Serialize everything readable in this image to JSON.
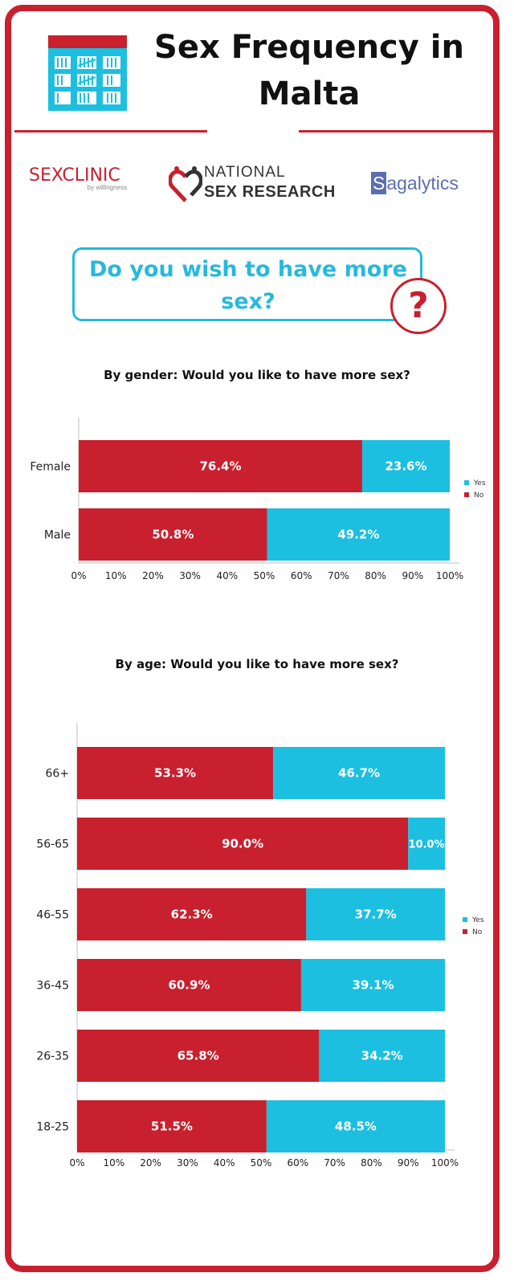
{
  "header": {
    "title": "Sex Frequency in Malta",
    "icon": "calendar-tally-icon"
  },
  "logos": {
    "sexclinic": {
      "main": "SEXCLINIC",
      "by": "by willingness"
    },
    "nsr": {
      "line1": "NATIONAL",
      "line2": "SEX RESEARCH"
    },
    "sagalytics": {
      "initial": "S",
      "rest": "agalytics"
    }
  },
  "question": {
    "text": "Do you wish to have more sex?",
    "mark": "?"
  },
  "colors": {
    "no": "#c8202e",
    "yes": "#1cbfe0",
    "accent": "#c8202e",
    "question": "#27b9dc"
  },
  "chart_data": [
    {
      "type": "bar",
      "stacked": true,
      "orientation": "horizontal",
      "title": "By gender: Would you like to have more sex?",
      "categories": [
        "Female",
        "Male"
      ],
      "series": [
        {
          "name": "No",
          "values": [
            76.4,
            50.8
          ]
        },
        {
          "name": "Yes",
          "values": [
            23.6,
            49.2
          ]
        }
      ],
      "data_labels": [
        [
          "76.4%",
          "50.8%"
        ],
        [
          "23.6%",
          "49.2%"
        ]
      ],
      "xlim": [
        0,
        100
      ],
      "xticks": [
        "0%",
        "10%",
        "20%",
        "30%",
        "40%",
        "50%",
        "60%",
        "70%",
        "80%",
        "90%",
        "100%"
      ],
      "legend": {
        "position": "right",
        "entries": [
          "Yes",
          "No"
        ]
      }
    },
    {
      "type": "bar",
      "stacked": true,
      "orientation": "horizontal",
      "title": "By age: Would you like to have more sex?",
      "categories": [
        "66+",
        "56-65",
        "46-55",
        "36-45",
        "26-35",
        "18-25"
      ],
      "series": [
        {
          "name": "No",
          "values": [
            53.3,
            90.0,
            62.3,
            60.9,
            65.8,
            51.5
          ]
        },
        {
          "name": "Yes",
          "values": [
            46.7,
            10.0,
            37.7,
            39.1,
            34.2,
            48.5
          ]
        }
      ],
      "data_labels": [
        [
          "53.3%",
          "90.0%",
          "62.3%",
          "60.9%",
          "65.8%",
          "51.5%"
        ],
        [
          "46.7%",
          "10.0%",
          "37.7%",
          "39.1%",
          "34.2%",
          "48.5%"
        ]
      ],
      "xlim": [
        0,
        100
      ],
      "xticks": [
        "0%",
        "10%",
        "20%",
        "30%",
        "40%",
        "50%",
        "60%",
        "70%",
        "80%",
        "90%",
        "100%"
      ],
      "legend": {
        "position": "right",
        "entries": [
          "Yes",
          "No"
        ]
      }
    }
  ]
}
